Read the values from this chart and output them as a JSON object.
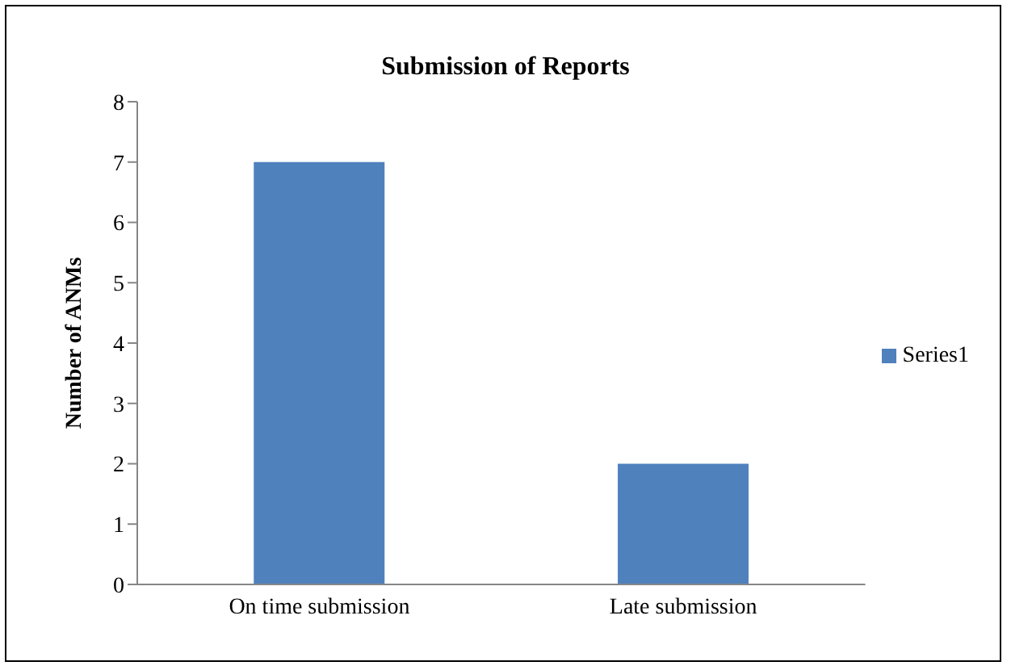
{
  "chart_data": {
    "type": "bar",
    "title": "Submission of Reports",
    "ylabel": "Number of ANMs",
    "categories": [
      "On time submission",
      "Late submission"
    ],
    "series": [
      {
        "name": "Series1",
        "color": "#4f81bd",
        "values": [
          7,
          2
        ]
      }
    ],
    "ylim": [
      0,
      8
    ],
    "yticks": [
      0,
      1,
      2,
      3,
      4,
      5,
      6,
      7,
      8
    ],
    "grid": false,
    "legend": "right"
  }
}
